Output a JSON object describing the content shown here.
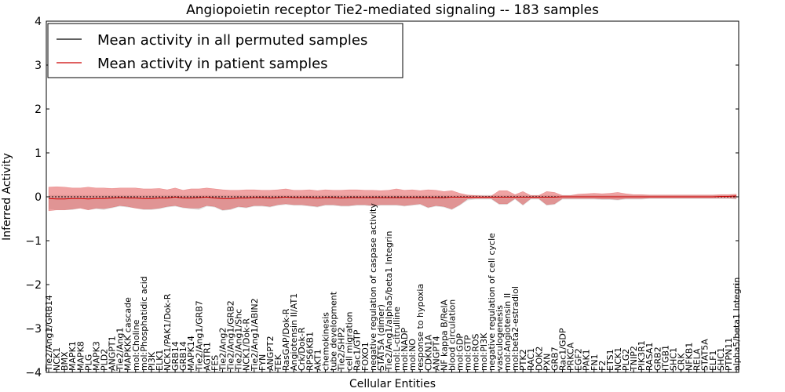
{
  "chart_data": {
    "type": "line",
    "title": "Angiopoietin receptor Tie2-mediated signaling -- 183 samples",
    "xlabel": "Cellular Entities",
    "ylabel": "Inferred Activity",
    "ylim": [
      -4,
      4
    ],
    "yticks": [
      4,
      3,
      2,
      1,
      0,
      -1,
      -2,
      -3,
      -4
    ],
    "ytick_labels": [
      "4",
      "3",
      "2",
      "1",
      "0",
      "−1",
      "−2",
      "−3",
      "−4"
    ],
    "legend_position": "top-left",
    "categories": [
      "Tie2/Ang1/GRB14",
      "NCK1",
      "BMX",
      "MAPK1",
      "MAPK8",
      "PLG",
      "MAPK3",
      "PLD2",
      "ANGPT1",
      "Tie2/Ang1",
      "MAPKKK cascade",
      "mol:Choline",
      "mol:Phosphatidic acid",
      "PI3K",
      "ELK1",
      "NCK1/PAK1/Dok-R",
      "GRB14",
      "GRB14",
      "MAPK14",
      "Tie2/Ang1/GRB7",
      "AGTR1",
      "FES",
      "Tie2/Ang2",
      "Tie2/Ang1/GRB2",
      "Tie2/Ang1/Shc",
      "NCK1/Dok-R",
      "Tie2/Ang1/ABIN2",
      "FYN",
      "ANGPT2",
      "TEK",
      "RasGAP/Dok-R",
      "Angiotensin II/AT1",
      "Crk/Dok-R",
      "RPS6KB1",
      "AKT1",
      "chemokinesis",
      "tube development",
      "Tie2/SHP2",
      "cell migration",
      "Rac1/GTP",
      "FOXO1",
      "negative regulation of caspase activity",
      "STAT5A (dimer)",
      "Tie2/Ang1/alpha5/beta1 Integrin",
      "mol:L-citrulline",
      "mol:NADP",
      "mol:NO",
      "response to hypoxia",
      "CDKN1A",
      "ANGPT4",
      "NF kappa B/RelA",
      "blood circulation",
      "mol:GDP",
      "mol:GTP",
      "mol:ROS",
      "mol:PI3K",
      "negative regulation of cell cycle",
      "vasculogenesis",
      "mol:Angiotensin II",
      "mol:beta2-estradiol",
      "PTK2",
      "RAC1",
      "DOK2",
      "PXN",
      "GRB7",
      "Rac1/GDP",
      "PRKCA",
      "EGF2",
      "PAK1",
      "FN1",
      "F2",
      "ETS1",
      "NCK1",
      "PLG2",
      "TNIP2",
      "PIK3R1",
      "RASA1",
      "GRB2",
      "ITGB1",
      "SHC1",
      "CRK",
      "NFKB1",
      "RELA",
      "STAT5A",
      "ELF1",
      "SHC1",
      "PTPN11",
      "alpha5/beta1 Integrin"
    ],
    "series": [
      {
        "name": "Mean activity in all permuted samples",
        "color": "#000000",
        "values": [
          0.0,
          0.0,
          0.0,
          0.0,
          0.0,
          0.0,
          0.0,
          0.0,
          0.0,
          0.0,
          0.0,
          0.0,
          0.0,
          0.0,
          0.0,
          0.0,
          0.0,
          0.0,
          0.0,
          0.0,
          0.0,
          0.0,
          0.0,
          0.0,
          0.0,
          0.0,
          0.0,
          0.0,
          0.0,
          0.0,
          0.0,
          0.0,
          0.0,
          0.0,
          0.0,
          0.0,
          0.0,
          0.0,
          0.0,
          0.0,
          0.0,
          0.0,
          0.0,
          0.0,
          0.0,
          0.0,
          0.0,
          0.0,
          0.0,
          0.0,
          0.0,
          0.0,
          0.0,
          0.0,
          0.0,
          0.0,
          0.0,
          0.0,
          0.0,
          0.0,
          0.0,
          0.0,
          0.0,
          0.0,
          0.0,
          0.0,
          0.0,
          0.0,
          0.0,
          0.0,
          0.0,
          0.0,
          0.0,
          0.0,
          0.0,
          0.0,
          0.0,
          0.0,
          0.0,
          0.0,
          0.0,
          0.0,
          0.0,
          0.0,
          0.0,
          0.0,
          0.0,
          0.0
        ]
      },
      {
        "name": "Mean activity in patient samples",
        "color": "#cc0000",
        "values": [
          -0.04,
          -0.05,
          -0.05,
          -0.04,
          -0.04,
          -0.05,
          -0.04,
          -0.04,
          -0.03,
          -0.02,
          -0.03,
          -0.03,
          -0.04,
          -0.04,
          -0.03,
          -0.03,
          -0.01,
          -0.03,
          -0.03,
          -0.02,
          -0.01,
          -0.03,
          -0.04,
          -0.04,
          -0.03,
          -0.03,
          -0.02,
          -0.02,
          -0.03,
          -0.02,
          -0.01,
          -0.02,
          -0.02,
          -0.02,
          -0.03,
          -0.02,
          -0.02,
          -0.03,
          -0.02,
          -0.02,
          -0.02,
          -0.02,
          -0.02,
          -0.02,
          -0.02,
          -0.02,
          -0.02,
          -0.02,
          -0.02,
          -0.02,
          -0.02,
          -0.01,
          -0.01,
          -0.01,
          -0.01,
          -0.01,
          -0.01,
          -0.01,
          -0.01,
          -0.01,
          -0.01,
          -0.01,
          -0.01,
          -0.01,
          -0.01,
          0.0,
          0.0,
          0.0,
          0.0,
          0.0,
          0.0,
          0.0,
          0.0,
          0.0,
          0.0,
          0.0,
          0.0,
          0.0,
          0.0,
          0.0,
          0.0,
          0.0,
          0.0,
          0.0,
          0.0,
          0.01,
          0.01,
          0.02
        ]
      }
    ],
    "patient_band_upper": [
      0.22,
      0.23,
      0.22,
      0.2,
      0.2,
      0.22,
      0.2,
      0.2,
      0.19,
      0.2,
      0.2,
      0.2,
      0.18,
      0.18,
      0.19,
      0.16,
      0.2,
      0.15,
      0.18,
      0.18,
      0.2,
      0.18,
      0.16,
      0.15,
      0.15,
      0.16,
      0.16,
      0.15,
      0.15,
      0.16,
      0.18,
      0.15,
      0.15,
      0.16,
      0.14,
      0.16,
      0.15,
      0.15,
      0.16,
      0.16,
      0.15,
      0.15,
      0.14,
      0.15,
      0.18,
      0.15,
      0.16,
      0.14,
      0.16,
      0.15,
      0.12,
      0.14,
      0.08,
      0.04,
      0.03,
      0.02,
      0.02,
      0.14,
      0.14,
      0.05,
      0.12,
      0.03,
      0.03,
      0.12,
      0.1,
      0.03,
      0.03,
      0.06,
      0.07,
      0.08,
      0.07,
      0.08,
      0.1,
      0.07,
      0.05,
      0.05,
      0.04,
      0.04,
      0.04,
      0.04,
      0.04,
      0.04,
      0.04,
      0.04,
      0.04,
      0.05,
      0.05,
      0.06
    ],
    "patient_band_lower": [
      -0.32,
      -0.3,
      -0.3,
      -0.28,
      -0.26,
      -0.3,
      -0.26,
      -0.27,
      -0.24,
      -0.2,
      -0.22,
      -0.26,
      -0.28,
      -0.28,
      -0.26,
      -0.22,
      -0.2,
      -0.24,
      -0.26,
      -0.26,
      -0.2,
      -0.22,
      -0.3,
      -0.28,
      -0.22,
      -0.24,
      -0.2,
      -0.2,
      -0.22,
      -0.18,
      -0.16,
      -0.18,
      -0.18,
      -0.2,
      -0.22,
      -0.18,
      -0.18,
      -0.2,
      -0.2,
      -0.18,
      -0.18,
      -0.2,
      -0.18,
      -0.18,
      -0.18,
      -0.2,
      -0.18,
      -0.16,
      -0.24,
      -0.2,
      -0.22,
      -0.28,
      -0.18,
      -0.05,
      -0.04,
      -0.04,
      -0.04,
      -0.16,
      -0.16,
      -0.04,
      -0.18,
      -0.04,
      -0.04,
      -0.18,
      -0.16,
      -0.04,
      -0.04,
      -0.04,
      -0.04,
      -0.04,
      -0.05,
      -0.05,
      -0.06,
      -0.04,
      -0.04,
      -0.04,
      -0.03,
      -0.03,
      -0.03,
      -0.03,
      -0.03,
      -0.03,
      -0.03,
      -0.03,
      -0.03,
      -0.03,
      -0.03,
      -0.04
    ],
    "permuted_band_upper": [
      0.04,
      0.04,
      0.04,
      0.04,
      0.04,
      0.04,
      0.04,
      0.04,
      0.04,
      0.04,
      0.04,
      0.04,
      0.04,
      0.04,
      0.04,
      0.04,
      0.04,
      0.04,
      0.04,
      0.04,
      0.04,
      0.04,
      0.04,
      0.04,
      0.04,
      0.04,
      0.04,
      0.04,
      0.04,
      0.04,
      0.04,
      0.04,
      0.04,
      0.04,
      0.04,
      0.04,
      0.04,
      0.04,
      0.04,
      0.04,
      0.04,
      0.04,
      0.04,
      0.04,
      0.04,
      0.04,
      0.04,
      0.04,
      0.04,
      0.04,
      0.04,
      0.04,
      0.04,
      0.04,
      0.04,
      0.04,
      0.04,
      0.04,
      0.04,
      0.04,
      0.04,
      0.04,
      0.04,
      0.04,
      0.04,
      0.04,
      0.04,
      0.04,
      0.04,
      0.04,
      0.04,
      0.04,
      0.04,
      0.04,
      0.04,
      0.04,
      0.04,
      0.04,
      0.04,
      0.04,
      0.04,
      0.04,
      0.04,
      0.04,
      0.04,
      0.04,
      0.04,
      0.04
    ],
    "permuted_band_lower": [
      -0.28,
      -0.3,
      -0.3,
      -0.3,
      -0.26,
      -0.3,
      -0.28,
      -0.3,
      -0.26,
      -0.22,
      -0.24,
      -0.26,
      -0.3,
      -0.3,
      -0.28,
      -0.24,
      -0.22,
      -0.26,
      -0.28,
      -0.3,
      -0.22,
      -0.24,
      -0.32,
      -0.3,
      -0.24,
      -0.26,
      -0.22,
      -0.22,
      -0.24,
      -0.2,
      -0.18,
      -0.2,
      -0.2,
      -0.22,
      -0.24,
      -0.2,
      -0.2,
      -0.22,
      -0.22,
      -0.2,
      -0.2,
      -0.22,
      -0.2,
      -0.2,
      -0.2,
      -0.22,
      -0.2,
      -0.18,
      -0.26,
      -0.22,
      -0.24,
      -0.3,
      -0.2,
      -0.08,
      -0.06,
      -0.06,
      -0.06,
      -0.18,
      -0.18,
      -0.06,
      -0.2,
      -0.06,
      -0.06,
      -0.2,
      -0.18,
      -0.06,
      -0.06,
      -0.06,
      -0.06,
      -0.06,
      -0.07,
      -0.07,
      -0.08,
      -0.06,
      -0.06,
      -0.06,
      -0.05,
      -0.05,
      -0.05,
      -0.05,
      -0.05,
      -0.05,
      -0.05,
      -0.05,
      -0.05,
      -0.05,
      -0.05,
      -0.06
    ]
  }
}
